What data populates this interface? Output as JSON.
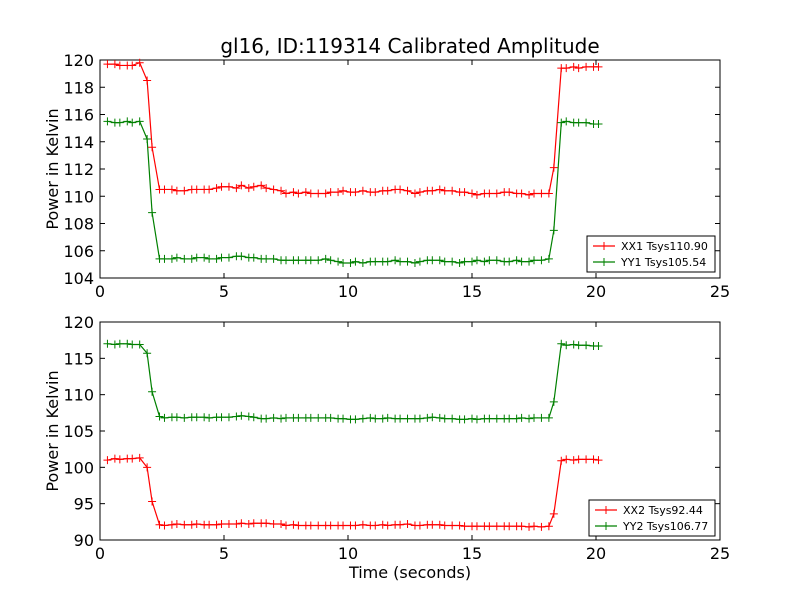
{
  "figure": {
    "title": "gl16, ID:119314 Calibrated Amplitude",
    "xlabel": "Time (seconds)"
  },
  "chart_data": [
    {
      "type": "line",
      "title": "gl16, ID:119314 Calibrated Amplitude",
      "xlabel": "",
      "ylabel": "Power in Kelvin",
      "xlim": [
        0,
        25
      ],
      "ylim": [
        104,
        120
      ],
      "xticks": [
        0,
        5,
        10,
        15,
        20,
        25
      ],
      "yticks": [
        104,
        106,
        108,
        110,
        112,
        114,
        116,
        118,
        120
      ],
      "grid": false,
      "legend_position": "bottom-right",
      "x": [
        0.3,
        0.6,
        0.8,
        1.1,
        1.3,
        1.6,
        1.9,
        2.1,
        2.4,
        2.6,
        2.9,
        3.1,
        3.4,
        3.7,
        3.9,
        4.2,
        4.4,
        4.7,
        4.9,
        5.2,
        5.5,
        5.7,
        6.0,
        6.2,
        6.5,
        6.7,
        7.0,
        7.3,
        7.5,
        7.8,
        8.0,
        8.3,
        8.5,
        8.8,
        9.1,
        9.3,
        9.6,
        9.8,
        10.1,
        10.3,
        10.6,
        10.9,
        11.1,
        11.4,
        11.6,
        11.9,
        12.1,
        12.4,
        12.7,
        12.9,
        13.2,
        13.4,
        13.7,
        13.9,
        14.2,
        14.5,
        14.7,
        15.0,
        15.2,
        15.5,
        15.7,
        16.0,
        16.3,
        16.5,
        16.8,
        17.0,
        17.3,
        17.5,
        17.8,
        18.1,
        18.3,
        18.6,
        18.8,
        19.1,
        19.3,
        19.6,
        19.9,
        20.1
      ],
      "series": [
        {
          "name": "XX1 Tsys110.90",
          "color": "#ff0000",
          "values": [
            119.7,
            119.7,
            119.6,
            119.6,
            119.6,
            119.8,
            118.5,
            113.6,
            110.5,
            110.5,
            110.5,
            110.4,
            110.4,
            110.5,
            110.5,
            110.5,
            110.5,
            110.6,
            110.7,
            110.7,
            110.6,
            110.8,
            110.6,
            110.7,
            110.8,
            110.6,
            110.5,
            110.4,
            110.2,
            110.3,
            110.2,
            110.3,
            110.2,
            110.2,
            110.2,
            110.3,
            110.3,
            110.4,
            110.3,
            110.3,
            110.4,
            110.3,
            110.3,
            110.4,
            110.4,
            110.5,
            110.5,
            110.4,
            110.2,
            110.3,
            110.4,
            110.4,
            110.5,
            110.4,
            110.4,
            110.3,
            110.3,
            110.2,
            110.1,
            110.2,
            110.2,
            110.2,
            110.3,
            110.3,
            110.2,
            110.2,
            110.1,
            110.2,
            110.2,
            110.2,
            112.1,
            119.4,
            119.4,
            119.5,
            119.4,
            119.5,
            119.5,
            119.5
          ]
        },
        {
          "name": "YY1 Tsys105.54",
          "color": "#008000",
          "values": [
            115.5,
            115.4,
            115.4,
            115.5,
            115.4,
            115.5,
            114.2,
            108.8,
            105.4,
            105.4,
            105.4,
            105.5,
            105.4,
            105.4,
            105.5,
            105.5,
            105.4,
            105.4,
            105.5,
            105.5,
            105.6,
            105.6,
            105.5,
            105.5,
            105.4,
            105.4,
            105.4,
            105.3,
            105.3,
            105.3,
            105.3,
            105.3,
            105.3,
            105.3,
            105.4,
            105.3,
            105.2,
            105.1,
            105.1,
            105.2,
            105.1,
            105.2,
            105.2,
            105.2,
            105.2,
            105.3,
            105.2,
            105.2,
            105.1,
            105.2,
            105.3,
            105.3,
            105.3,
            105.2,
            105.2,
            105.1,
            105.2,
            105.2,
            105.3,
            105.2,
            105.3,
            105.3,
            105.2,
            105.2,
            105.3,
            105.2,
            105.2,
            105.3,
            105.3,
            105.4,
            107.5,
            115.4,
            115.5,
            115.4,
            115.4,
            115.4,
            115.3,
            115.3
          ]
        }
      ]
    },
    {
      "type": "line",
      "title": "",
      "xlabel": "Time (seconds)",
      "ylabel": "Power in Kelvin",
      "xlim": [
        0,
        25
      ],
      "ylim": [
        90,
        120
      ],
      "xticks": [
        0,
        5,
        10,
        15,
        20,
        25
      ],
      "yticks": [
        90,
        95,
        100,
        105,
        110,
        115,
        120
      ],
      "grid": false,
      "legend_position": "bottom-right",
      "x": [
        0.3,
        0.6,
        0.8,
        1.1,
        1.3,
        1.6,
        1.9,
        2.1,
        2.4,
        2.6,
        2.9,
        3.1,
        3.4,
        3.7,
        3.9,
        4.2,
        4.4,
        4.7,
        4.9,
        5.2,
        5.5,
        5.7,
        6.0,
        6.2,
        6.5,
        6.7,
        7.0,
        7.3,
        7.5,
        7.8,
        8.0,
        8.3,
        8.5,
        8.8,
        9.1,
        9.3,
        9.6,
        9.8,
        10.1,
        10.3,
        10.6,
        10.9,
        11.1,
        11.4,
        11.6,
        11.9,
        12.1,
        12.4,
        12.7,
        12.9,
        13.2,
        13.4,
        13.7,
        13.9,
        14.2,
        14.5,
        14.7,
        15.0,
        15.2,
        15.5,
        15.7,
        16.0,
        16.3,
        16.5,
        16.8,
        17.0,
        17.3,
        17.5,
        17.8,
        18.1,
        18.3,
        18.6,
        18.8,
        19.1,
        19.3,
        19.6,
        19.9,
        20.1
      ],
      "series": [
        {
          "name": "XX2 Tsys92.44",
          "color": "#ff0000",
          "values": [
            101.0,
            101.2,
            101.1,
            101.2,
            101.2,
            101.3,
            100.0,
            95.3,
            92.1,
            92.0,
            92.1,
            92.2,
            92.1,
            92.1,
            92.2,
            92.1,
            92.1,
            92.1,
            92.2,
            92.2,
            92.2,
            92.3,
            92.2,
            92.3,
            92.3,
            92.3,
            92.2,
            92.2,
            92.0,
            92.1,
            92.0,
            92.0,
            92.0,
            92.0,
            92.0,
            92.0,
            92.0,
            92.0,
            92.0,
            92.0,
            92.1,
            92.0,
            92.0,
            92.1,
            92.0,
            92.1,
            92.1,
            92.2,
            92.0,
            92.0,
            92.1,
            92.1,
            92.1,
            92.0,
            92.0,
            92.0,
            91.9,
            91.9,
            91.9,
            91.9,
            91.9,
            91.9,
            91.9,
            91.9,
            91.9,
            91.9,
            91.8,
            91.9,
            91.8,
            91.9,
            93.6,
            100.9,
            101.1,
            101.0,
            101.1,
            101.1,
            101.1,
            101.0
          ]
        },
        {
          "name": "YY2 Tsys106.77",
          "color": "#008000",
          "values": [
            117.0,
            116.9,
            117.0,
            117.0,
            116.9,
            116.9,
            115.7,
            110.4,
            107.0,
            106.8,
            106.9,
            106.9,
            106.8,
            106.9,
            106.9,
            106.9,
            106.8,
            106.9,
            106.9,
            106.9,
            107.0,
            107.1,
            107.0,
            106.9,
            106.7,
            106.7,
            106.8,
            106.7,
            106.8,
            106.8,
            106.8,
            106.8,
            106.8,
            106.8,
            106.8,
            106.8,
            106.7,
            106.7,
            106.6,
            106.6,
            106.7,
            106.8,
            106.7,
            106.7,
            106.8,
            106.7,
            106.7,
            106.7,
            106.7,
            106.7,
            106.8,
            106.9,
            106.8,
            106.7,
            106.7,
            106.6,
            106.6,
            106.7,
            106.6,
            106.7,
            106.7,
            106.7,
            106.7,
            106.7,
            106.7,
            106.8,
            106.7,
            106.8,
            106.8,
            106.8,
            109.0,
            117.0,
            116.8,
            116.9,
            116.8,
            116.8,
            116.7,
            116.7
          ]
        }
      ]
    }
  ]
}
